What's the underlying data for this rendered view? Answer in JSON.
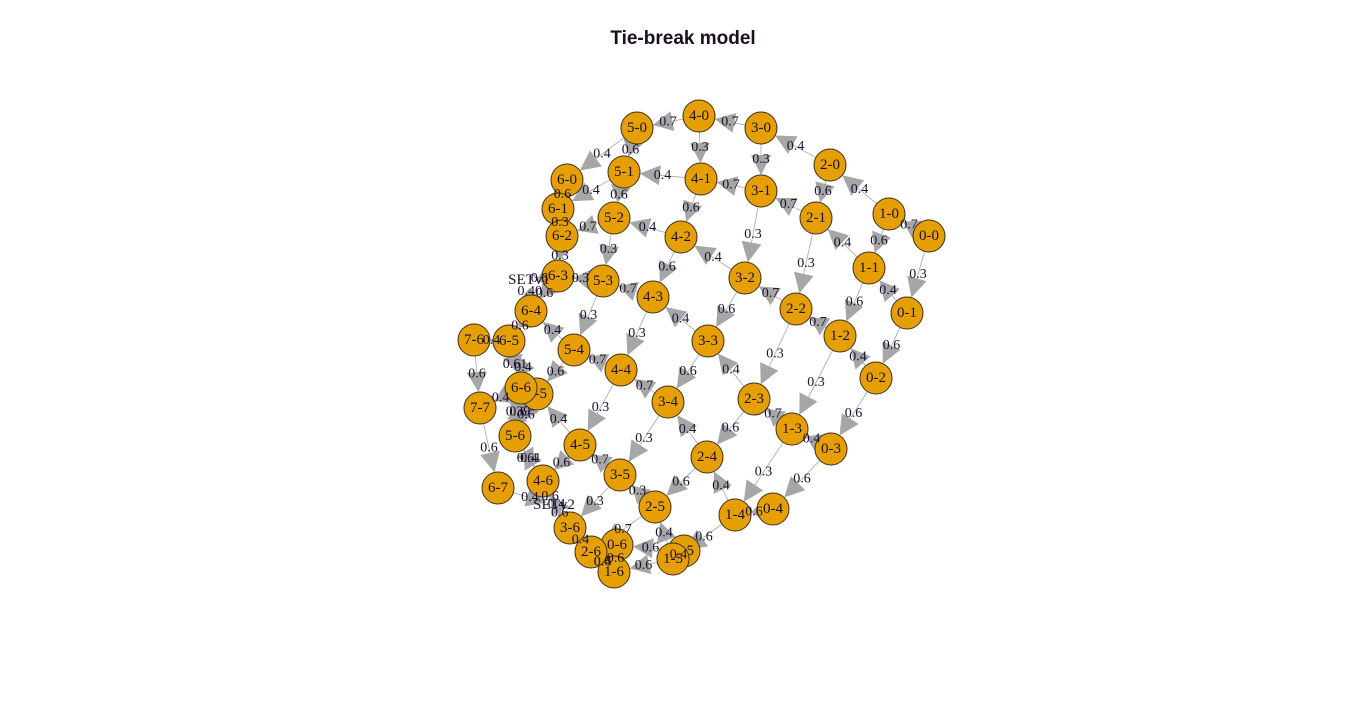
{
  "title": "Tie-break model",
  "colors": {
    "node_fill": "#e69f00",
    "edge": "#a6a6a6",
    "label": "#1b1030"
  },
  "nodes": [
    "0-0",
    "1-0",
    "2-0",
    "3-0",
    "4-0",
    "5-0",
    "6-0",
    "0-1",
    "1-1",
    "2-1",
    "3-1",
    "4-1",
    "5-1",
    "6-1",
    "0-2",
    "1-2",
    "2-2",
    "3-2",
    "4-2",
    "5-2",
    "6-2",
    "0-3",
    "1-3",
    "2-3",
    "3-3",
    "4-3",
    "5-3",
    "6-3",
    "0-4",
    "1-4",
    "2-4",
    "3-4",
    "4-4",
    "5-4",
    "6-4",
    "0-5",
    "1-5",
    "2-5",
    "3-5",
    "4-5",
    "5-5",
    "6-5",
    "0-6",
    "1-6",
    "2-6",
    "3-6",
    "4-6",
    "5-6",
    "6-6",
    "7-6",
    "6-7",
    "7-7",
    "SETv1",
    "SETv2"
  ],
  "edges": [
    {
      "from": "4-0",
      "to": "5-0",
      "label": "0.7"
    },
    {
      "from": "4-0",
      "to": "4-1",
      "label": "0.3"
    },
    {
      "from": "3-0",
      "to": "4-0",
      "label": "0.7"
    },
    {
      "from": "3-0",
      "to": "3-1",
      "label": "0.3"
    },
    {
      "from": "2-0",
      "to": "3-0",
      "label": "0.4"
    },
    {
      "from": "2-0",
      "to": "2-1",
      "label": "0.6"
    },
    {
      "from": "1-0",
      "to": "2-0",
      "label": "0.4"
    },
    {
      "from": "1-0",
      "to": "1-1",
      "label": "0.6"
    },
    {
      "from": "0-0",
      "to": "1-0",
      "label": "0.7"
    },
    {
      "from": "0-0",
      "to": "0-1",
      "label": "0.3"
    },
    {
      "from": "5-0",
      "to": "6-0",
      "label": "0.4"
    },
    {
      "from": "5-0",
      "to": "5-1",
      "label": "0.6"
    },
    {
      "from": "4-1",
      "to": "5-1",
      "label": "0.4"
    },
    {
      "from": "4-1",
      "to": "4-2",
      "label": "0.6"
    },
    {
      "from": "3-1",
      "to": "4-1",
      "label": "0.7"
    },
    {
      "from": "3-1",
      "to": "3-2",
      "label": "0.3"
    },
    {
      "from": "2-1",
      "to": "3-1",
      "label": "0.7"
    },
    {
      "from": "2-1",
      "to": "2-2",
      "label": "0.3"
    },
    {
      "from": "1-1",
      "to": "2-1",
      "label": "0.4"
    },
    {
      "from": "1-1",
      "to": "1-2",
      "label": "0.6"
    },
    {
      "from": "0-1",
      "to": "1-1",
      "label": "0.4"
    },
    {
      "from": "0-1",
      "to": "0-2",
      "label": "0.6"
    },
    {
      "from": "5-1",
      "to": "6-1",
      "label": "0.4"
    },
    {
      "from": "5-1",
      "to": "5-2",
      "label": "0.6"
    },
    {
      "from": "6-0",
      "to": "6-1",
      "label": "0.6"
    },
    {
      "from": "4-2",
      "to": "5-2",
      "label": "0.4"
    },
    {
      "from": "4-2",
      "to": "4-3",
      "label": "0.6"
    },
    {
      "from": "3-2",
      "to": "4-2",
      "label": "0.4"
    },
    {
      "from": "3-2",
      "to": "3-3",
      "label": "0.6"
    },
    {
      "from": "2-2",
      "to": "3-2",
      "label": "0.7"
    },
    {
      "from": "2-2",
      "to": "2-3",
      "label": "0.3"
    },
    {
      "from": "1-2",
      "to": "2-2",
      "label": "0.7"
    },
    {
      "from": "1-2",
      "to": "1-3",
      "label": "0.3"
    },
    {
      "from": "0-2",
      "to": "1-2",
      "label": "0.4"
    },
    {
      "from": "0-2",
      "to": "0-3",
      "label": "0.6"
    },
    {
      "from": "5-2",
      "to": "6-2",
      "label": "0.7"
    },
    {
      "from": "5-2",
      "to": "5-3",
      "label": "0.3"
    },
    {
      "from": "6-1",
      "to": "6-2",
      "label": "0.3"
    },
    {
      "from": "6-2",
      "to": "6-3",
      "label": "0.3"
    },
    {
      "from": "4-3",
      "to": "5-3",
      "label": "0.7"
    },
    {
      "from": "4-3",
      "to": "4-4",
      "label": "0.3"
    },
    {
      "from": "3-3",
      "to": "4-3",
      "label": "0.4"
    },
    {
      "from": "3-3",
      "to": "3-4",
      "label": "0.6"
    },
    {
      "from": "2-3",
      "to": "3-3",
      "label": "0.4"
    },
    {
      "from": "2-3",
      "to": "2-4",
      "label": "0.6"
    },
    {
      "from": "1-3",
      "to": "2-3",
      "label": "0.7"
    },
    {
      "from": "1-3",
      "to": "1-4",
      "label": "0.3"
    },
    {
      "from": "0-3",
      "to": "1-3",
      "label": "0.4"
    },
    {
      "from": "0-3",
      "to": "0-4",
      "label": "0.6"
    },
    {
      "from": "5-3",
      "to": "6-3",
      "label": "0.3"
    },
    {
      "from": "5-3",
      "to": "5-4",
      "label": "0.3"
    },
    {
      "from": "6-3",
      "to": "SETv1",
      "label": "0.6"
    },
    {
      "from": "6-3",
      "to": "6-4",
      "label": "0.6"
    },
    {
      "from": "4-4",
      "to": "5-4",
      "label": "0.7"
    },
    {
      "from": "4-4",
      "to": "4-5",
      "label": "0.3"
    },
    {
      "from": "3-4",
      "to": "4-4",
      "label": "0.7"
    },
    {
      "from": "3-4",
      "to": "3-5",
      "label": "0.3"
    },
    {
      "from": "2-4",
      "to": "3-4",
      "label": "0.4"
    },
    {
      "from": "2-4",
      "to": "2-5",
      "label": "0.6"
    },
    {
      "from": "1-4",
      "to": "2-4",
      "label": "0.4"
    },
    {
      "from": "1-4",
      "to": "1-5",
      "label": "0.6"
    },
    {
      "from": "0-4",
      "to": "1-4",
      "label": "0.6"
    },
    {
      "from": "5-4",
      "to": "6-4",
      "label": "0.4"
    },
    {
      "from": "5-4",
      "to": "5-5",
      "label": "0.6"
    },
    {
      "from": "6-4",
      "to": "SETv1",
      "label": "0.40"
    },
    {
      "from": "6-4",
      "to": "6-5",
      "label": "0.6"
    },
    {
      "from": "6-5",
      "to": "7-6",
      "label": "0.4"
    },
    {
      "from": "6-5",
      "to": "6-6",
      "label": "0.61"
    },
    {
      "from": "7-6",
      "to": "7-7",
      "label": "0.6"
    },
    {
      "from": "7-7",
      "to": "6-7",
      "label": "0.6"
    },
    {
      "from": "6-6",
      "to": "7-7",
      "label": "0.4"
    },
    {
      "from": "6-6",
      "to": "5-6",
      "label": "0.6"
    },
    {
      "from": "5-5",
      "to": "6-5",
      "label": "0.4"
    },
    {
      "from": "5-5",
      "to": "5-6",
      "label": "0.6"
    },
    {
      "from": "4-5",
      "to": "5-5",
      "label": "0.4"
    },
    {
      "from": "4-5",
      "to": "4-6",
      "label": "0.6"
    },
    {
      "from": "3-5",
      "to": "4-5",
      "label": "0.7"
    },
    {
      "from": "3-5",
      "to": "3-6",
      "label": "0.3"
    },
    {
      "from": "2-5",
      "to": "3-5",
      "label": "0.3"
    },
    {
      "from": "2-5",
      "to": "2-6",
      "label": "0.7"
    },
    {
      "from": "1-5",
      "to": "2-5",
      "label": "0.4"
    },
    {
      "from": "1-5",
      "to": "1-6",
      "label": "0.6"
    },
    {
      "from": "0-5",
      "to": "1-5",
      "label": "0.4"
    },
    {
      "from": "0-5",
      "to": "0-6",
      "label": "0.6"
    },
    {
      "from": "5-6",
      "to": "6-6",
      "label": "0.39"
    },
    {
      "from": "5-6",
      "to": "4-6",
      "label": "0.61"
    },
    {
      "from": "4-6",
      "to": "SETv2",
      "label": "0.6"
    },
    {
      "from": "4-6",
      "to": "5-6",
      "label": "0.4"
    },
    {
      "from": "3-6",
      "to": "4-6",
      "label": "0.4"
    },
    {
      "from": "3-6",
      "to": "SETv2",
      "label": "0.6"
    },
    {
      "from": "2-6",
      "to": "3-6",
      "label": "0.4"
    },
    {
      "from": "2-6",
      "to": "1-6",
      "label": "0.6"
    },
    {
      "from": "1-6",
      "to": "2-6",
      "label": "0.4"
    },
    {
      "from": "0-6",
      "to": "1-6",
      "label": "0.6"
    },
    {
      "from": "6-7",
      "to": "SETv2",
      "label": "0.4"
    }
  ]
}
